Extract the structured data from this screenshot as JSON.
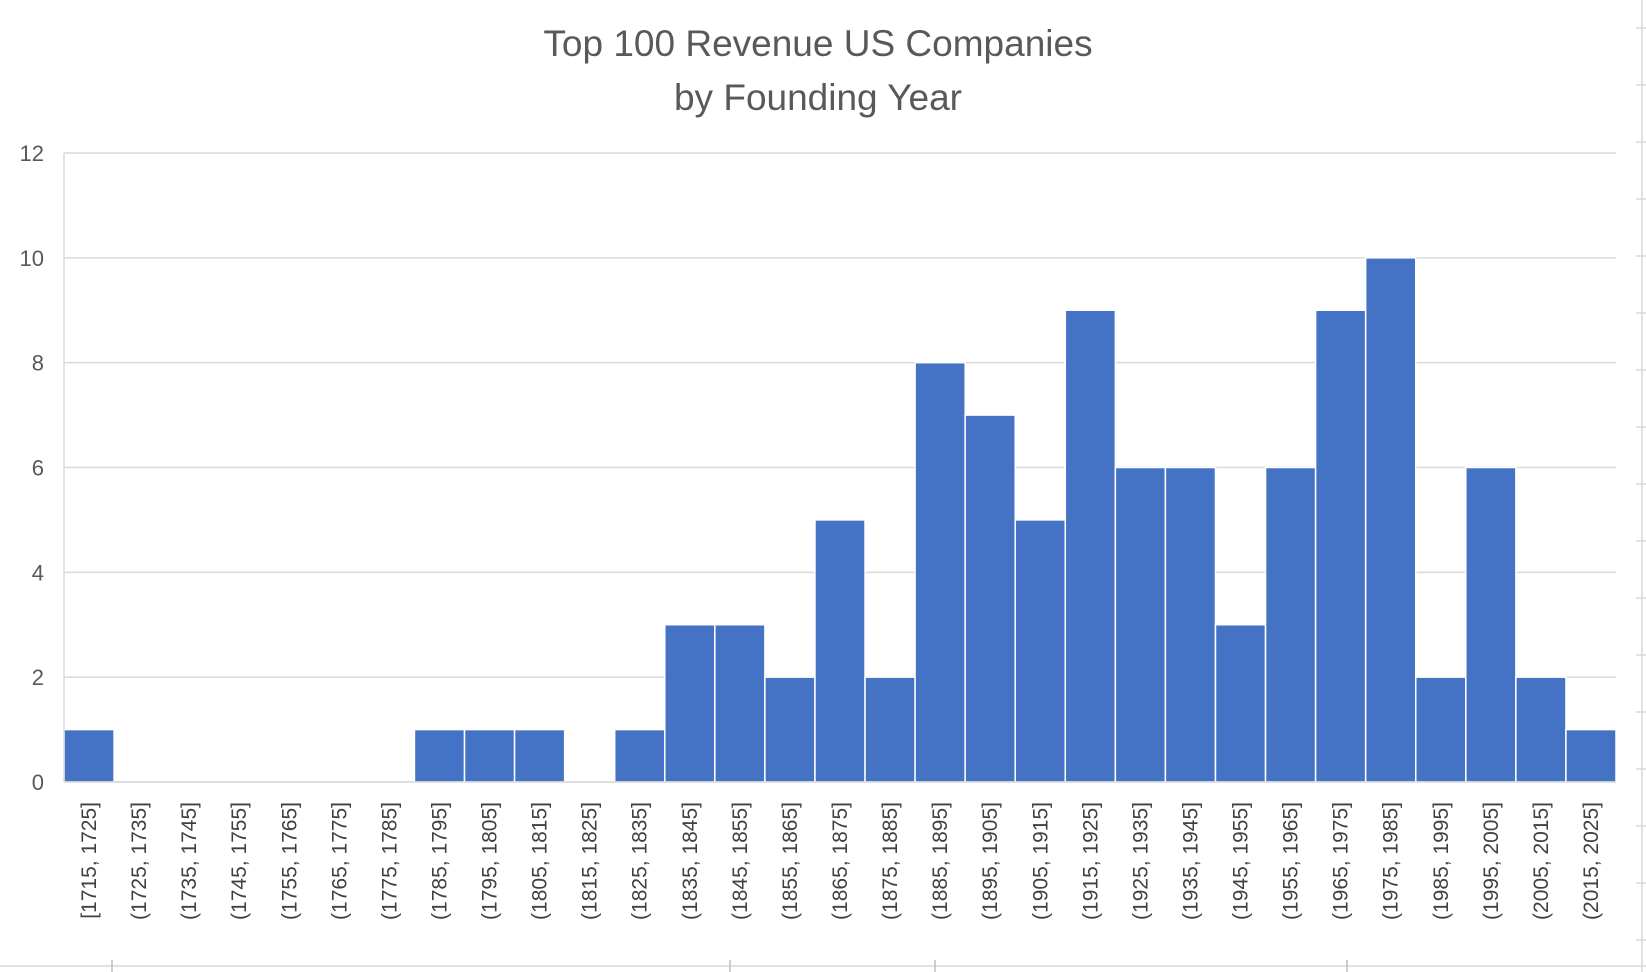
{
  "chart_data": {
    "type": "bar",
    "title": [
      "Top 100 Revenue US Companies",
      "by Founding Year"
    ],
    "xlabel": "",
    "ylabel": "",
    "ylim": [
      0,
      12
    ],
    "yticks": [
      "0",
      "2",
      "4",
      "6",
      "8",
      "10",
      "12"
    ],
    "grid": true,
    "bar_color": "#4472C4",
    "categories": [
      "[1715, 1725]",
      "(1725, 1735]",
      "(1735, 1745]",
      "(1745, 1755]",
      "(1755, 1765]",
      "(1765, 1775]",
      "(1775, 1785]",
      "(1785, 1795]",
      "(1795, 1805]",
      "(1805, 1815]",
      "(1815, 1825]",
      "(1825, 1835]",
      "(1835, 1845]",
      "(1845, 1855]",
      "(1855, 1865]",
      "(1865, 1875]",
      "(1875, 1885]",
      "(1885, 1895]",
      "(1895, 1905]",
      "(1905, 1915]",
      "(1915, 1925]",
      "(1925, 1935]",
      "(1935, 1945]",
      "(1945, 1955]",
      "(1955, 1965]",
      "(1965, 1975]",
      "(1975, 1985]",
      "(1985, 1995]",
      "(1995, 2005]",
      "(2005, 2015]",
      "(2015, 2025]"
    ],
    "values": [
      1,
      0,
      0,
      0,
      0,
      0,
      0,
      1,
      1,
      1,
      0,
      1,
      3,
      3,
      2,
      5,
      2,
      8,
      7,
      5,
      9,
      6,
      6,
      3,
      6,
      9,
      10,
      2,
      6,
      2,
      1
    ]
  }
}
